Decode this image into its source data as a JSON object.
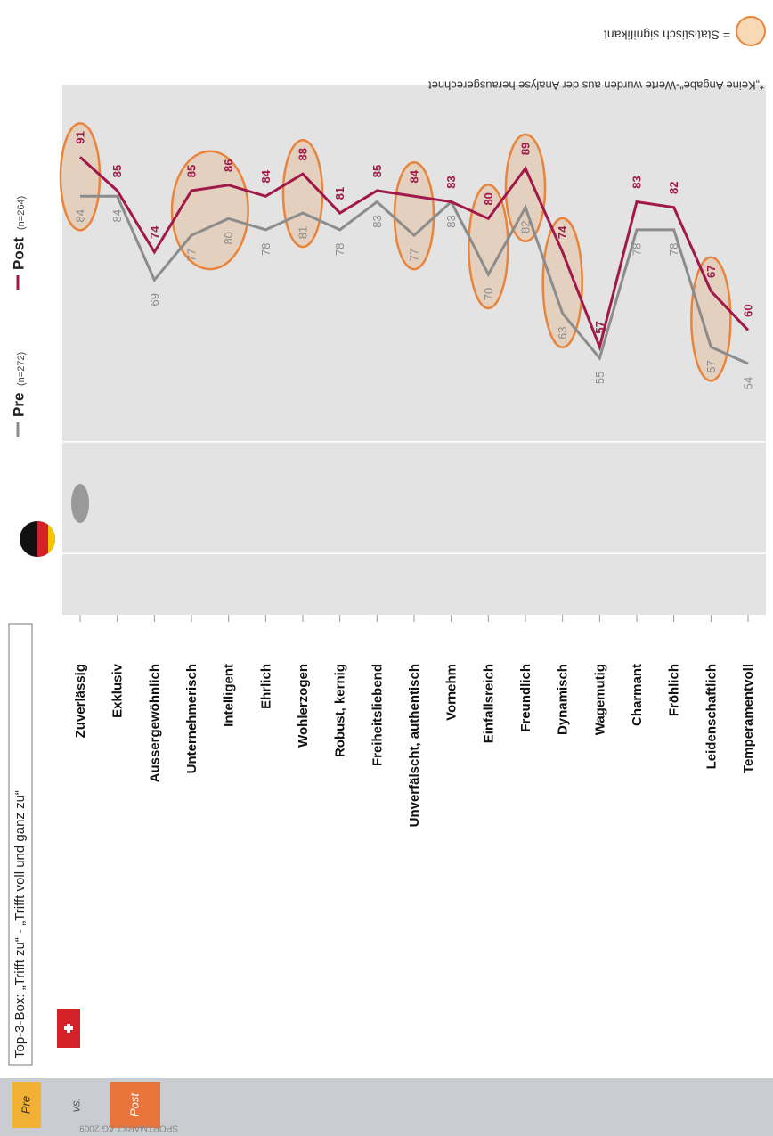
{
  "chart_data": {
    "type": "line",
    "title": "Top-3-Box: „Trifft zu“ - „Trifft voll und ganz zu“",
    "categories": [
      "Zuverlässig",
      "Exklusiv",
      "Aussergewöhnlich",
      "Unternehmerisch",
      "Intelligent",
      "Ehrlich",
      "Wohlerzogen",
      "Robust, kernig",
      "Freiheitsliebend",
      "Unverfälscht, authentisch",
      "Vornehm",
      "Einfallsreich",
      "Freundlich",
      "Dynamisch",
      "Wagemutig",
      "Charmant",
      "Fröhlich",
      "Leidenschaftlich",
      "Temperamentvoll"
    ],
    "series": [
      {
        "name": "Pre",
        "name_note": "(n=272)",
        "color": "#8c8c8c",
        "values": [
          84,
          84,
          69,
          77,
          80,
          78,
          81,
          78,
          83,
          77,
          83,
          70,
          82,
          63,
          55,
          78,
          78,
          57,
          54
        ]
      },
      {
        "name": "Post",
        "name_note": "(n=264)",
        "color": "#a0194a",
        "values": [
          91,
          85,
          74,
          85,
          86,
          84,
          88,
          81,
          85,
          84,
          83,
          80,
          89,
          74,
          57,
          83,
          82,
          67,
          60
        ]
      }
    ],
    "highlighted": [
      [
        0
      ],
      [
        3,
        4
      ],
      [
        6
      ],
      [
        9
      ],
      [
        11
      ],
      [
        12
      ],
      [
        13
      ],
      [
        17
      ]
    ],
    "ylim": [
      9,
      104
    ],
    "yticks": [
      20,
      40
    ],
    "grid": true,
    "footnote": "*„Keine Angabe“-Werte wurden aus der Analyse herausgerechnet",
    "significance_label": "= Statistisch signifikant",
    "tabs": [
      "Pre",
      "vs.",
      "Post"
    ],
    "source": "SPORTMARKT AG 2009"
  }
}
